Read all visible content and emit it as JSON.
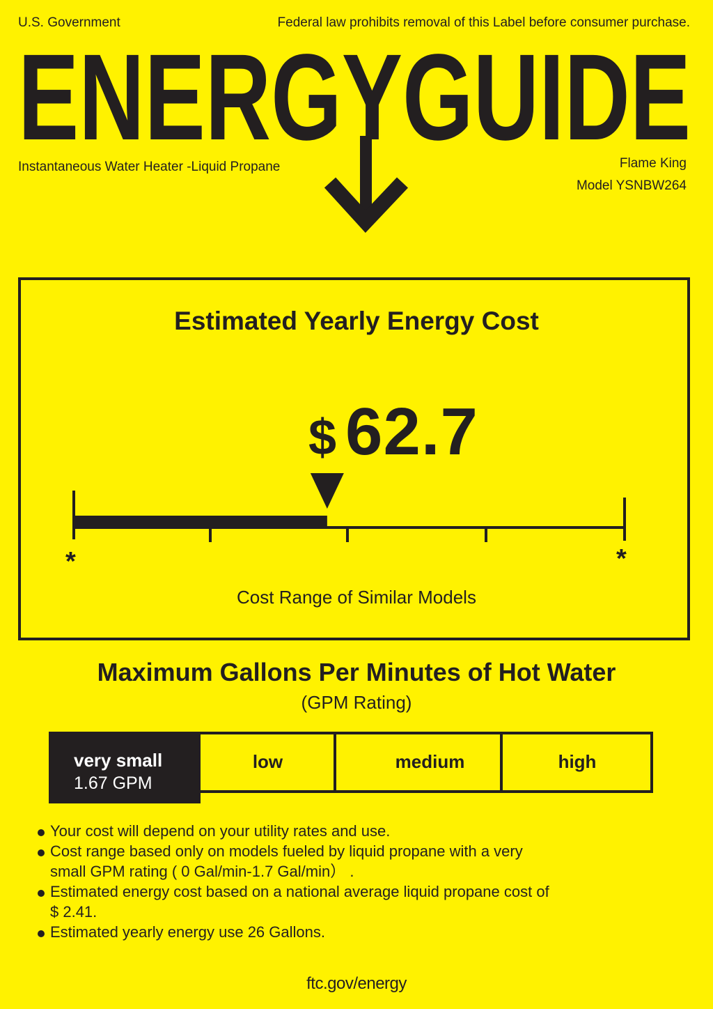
{
  "header": {
    "government": "U.S. Government",
    "notice": "Federal law prohibits removal of this Label before consumer purchase.",
    "logo_text": "ENERGYGUIDE",
    "product_type": "Instantaneous Water Heater -Liquid Propane",
    "brand": "Flame King",
    "model": "Model YSNBW264"
  },
  "cost": {
    "title": "Estimated Yearly Energy Cost",
    "currency": "$",
    "value": "62.7",
    "range_label": "Cost Range of Similar Models",
    "range_min": "*",
    "range_max": "*",
    "position_fraction": 0.46
  },
  "gpm": {
    "title": "Maximum Gallons Per Minutes of Hot Water",
    "subtitle": "(GPM Rating)",
    "categories": [
      {
        "label": "very small",
        "value": "1.67 GPM",
        "active": true
      },
      {
        "label": "low"
      },
      {
        "label": "medium"
      },
      {
        "label": "high"
      }
    ]
  },
  "notes": [
    "Your cost will depend on your utility rates and use.",
    "Cost range based only on models fueled by liquid propane with a very small GPM rating ( 0 Gal/min-1.7 Gal/min） .",
    "Estimated energy cost based on a national average liquid propane cost of  $ 2.41.",
    "Estimated yearly energy use 26 Gallons."
  ],
  "footer": "ftc.gov/energy",
  "colors": {
    "background": "#fff200",
    "ink": "#231f20"
  }
}
